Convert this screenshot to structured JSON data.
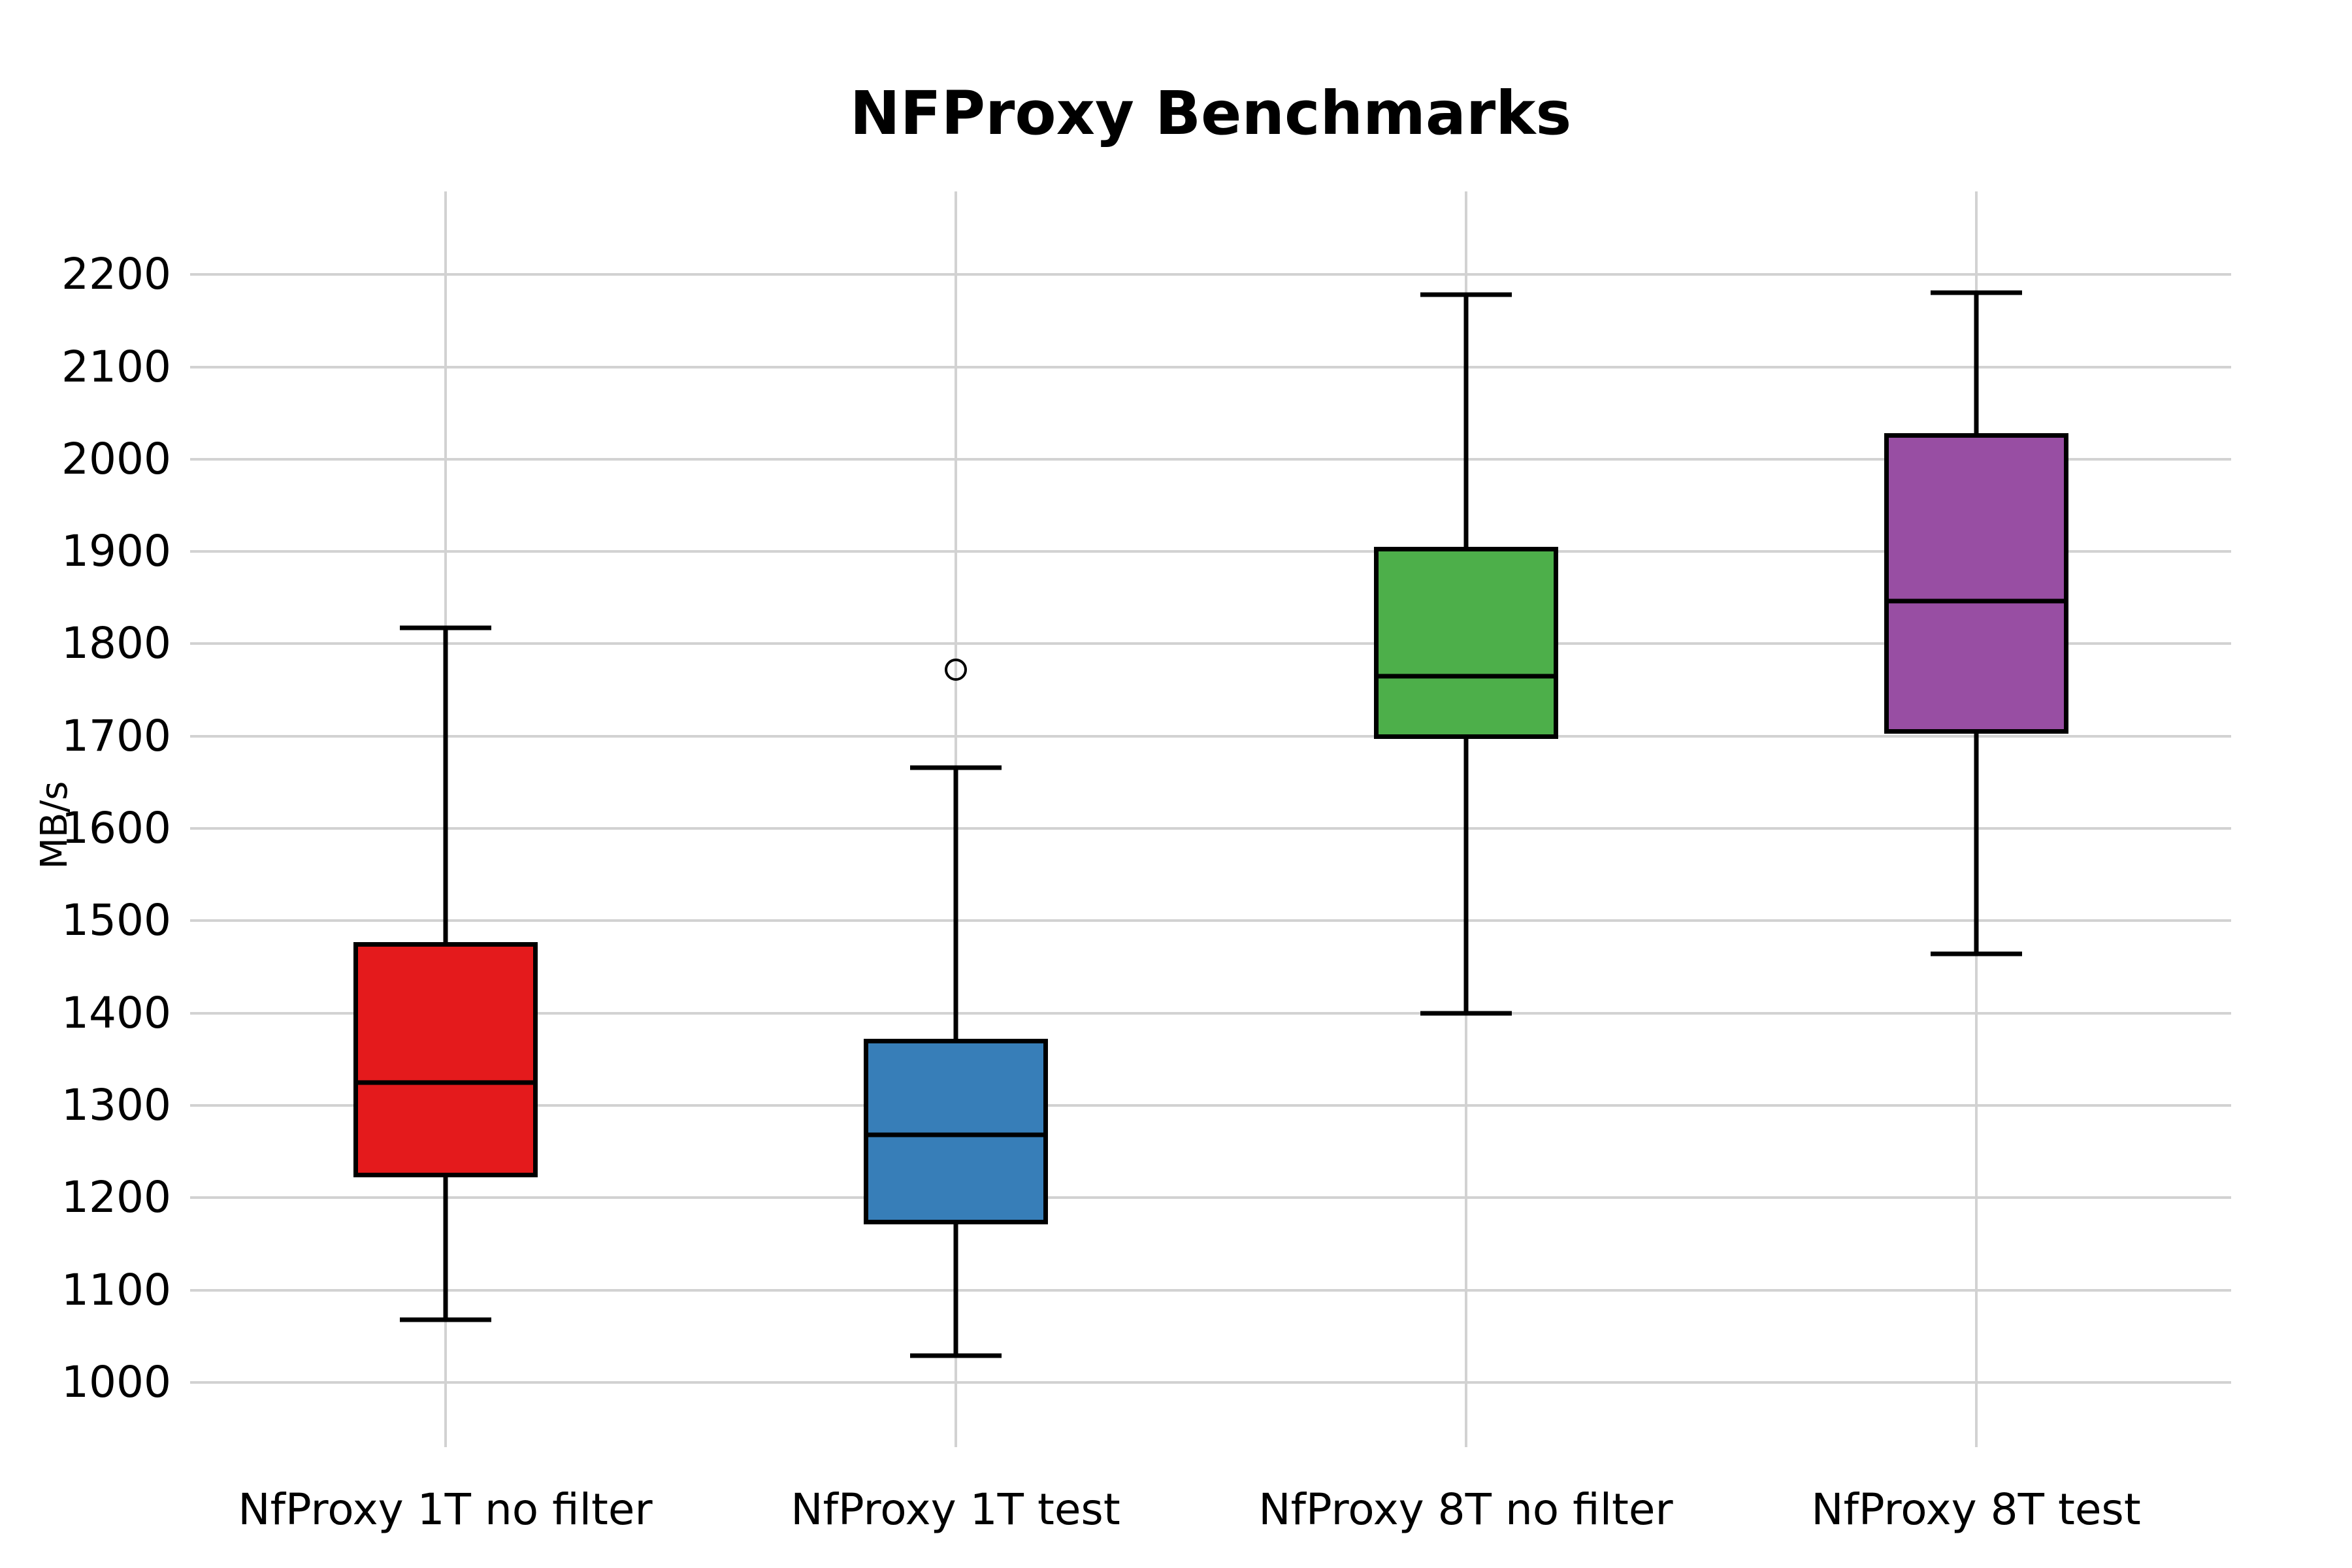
{
  "title": "NFProxy Benchmarks",
  "chart_data": {
    "type": "box",
    "title": "NFProxy Benchmarks",
    "xlabel": "",
    "ylabel": "MB/s",
    "ylim": [
      930,
      2290
    ],
    "yticks": [
      1000,
      1100,
      1200,
      1300,
      1400,
      1500,
      1600,
      1700,
      1800,
      1900,
      2000,
      2100,
      2200
    ],
    "grid": true,
    "legend": "none",
    "categories": [
      "NfProxy 1T no filter",
      "NfProxy 1T test",
      "NfProxy 8T no filter",
      "NfProxy 8T test"
    ],
    "series": [
      {
        "name": "NfProxy 1T no filter",
        "color": "#e41a1c",
        "whisker_low": 1068,
        "q1": 1222,
        "median": 1325,
        "q3": 1477,
        "whisker_high": 1817,
        "outliers": []
      },
      {
        "name": "NfProxy 1T test",
        "color": "#377eb8",
        "whisker_low": 1029,
        "q1": 1171,
        "median": 1268,
        "q3": 1372,
        "whisker_high": 1666,
        "outliers": [
          1772
        ]
      },
      {
        "name": "NfProxy 8T no filter",
        "color": "#4daf4a",
        "whisker_low": 1400,
        "q1": 1697,
        "median": 1765,
        "q3": 1905,
        "whisker_high": 2178,
        "outliers": []
      },
      {
        "name": "NfProxy 8T test",
        "color": "#984ea3",
        "whisker_low": 1464,
        "q1": 1703,
        "median": 1846,
        "q3": 2028,
        "whisker_high": 2180,
        "outliers": []
      }
    ],
    "colors": {
      "background": "#ffffff",
      "grid": "#d2d2d2",
      "box_border": "#000000",
      "text": "#000000"
    }
  }
}
